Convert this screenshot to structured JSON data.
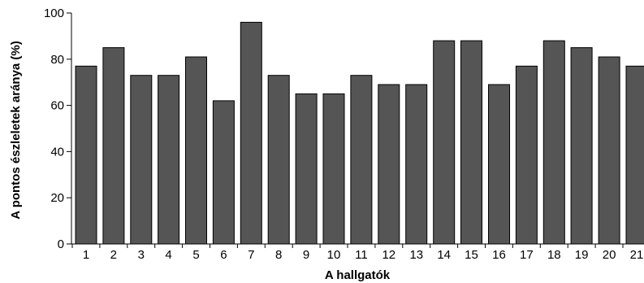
{
  "chart_data": {
    "type": "bar",
    "title": "",
    "xlabel": "A hallgatók",
    "ylabel": "A pontos észleletek aránya (%)",
    "categories": [
      "1",
      "2",
      "3",
      "4",
      "5",
      "6",
      "7",
      "8",
      "9",
      "10",
      "11",
      "12",
      "13",
      "14",
      "15",
      "16",
      "17",
      "18",
      "19",
      "20",
      "21"
    ],
    "values": [
      77,
      85,
      73,
      73,
      81,
      62,
      96,
      73,
      65,
      65,
      73,
      69,
      69,
      88,
      88,
      69,
      77,
      88,
      85,
      81,
      77
    ],
    "ylim": [
      0,
      100
    ],
    "yticks": [
      0,
      20,
      40,
      60,
      80,
      100
    ],
    "grid": false,
    "bar_color": "#555555"
  }
}
